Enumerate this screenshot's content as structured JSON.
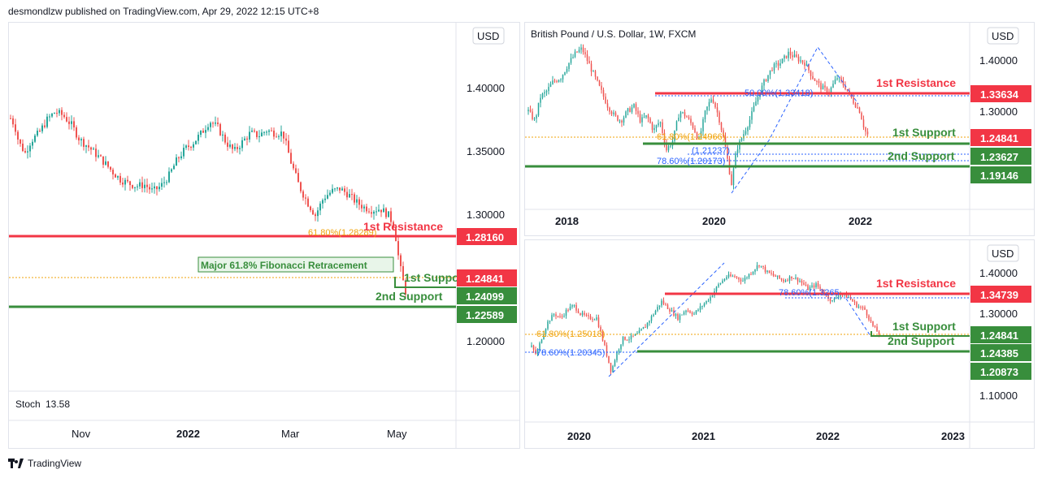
{
  "header": {
    "attribution": "desmondlzw published on TradingView.com, Apr 29, 2022 12:15 UTC+8"
  },
  "footer": {
    "brand": "TradingView"
  },
  "colors": {
    "resistance": "#f23645",
    "support": "#388e3c",
    "fib": "#f0a30a",
    "fib_blue": "#2962ff",
    "candle_up": "#26a69a",
    "candle_down": "#ef5350"
  },
  "chart_data": [
    {
      "id": "daily",
      "type": "candlestick",
      "currency_label": "USD",
      "yticks": [
        "1.40000",
        "1.35000",
        "1.30000",
        "1.20000"
      ],
      "xticks": [
        "Nov",
        "2022",
        "Mar",
        "May"
      ],
      "ylim": [
        1.17,
        1.445
      ],
      "close_path": [
        [
          0,
          1.373
        ],
        [
          5,
          1.368
        ],
        [
          10,
          1.355
        ],
        [
          18,
          1.347
        ],
        [
          25,
          1.356
        ],
        [
          35,
          1.362
        ],
        [
          45,
          1.372
        ],
        [
          55,
          1.378
        ],
        [
          65,
          1.375
        ],
        [
          75,
          1.368
        ],
        [
          85,
          1.357
        ],
        [
          95,
          1.352
        ],
        [
          105,
          1.346
        ],
        [
          115,
          1.34
        ],
        [
          125,
          1.333
        ],
        [
          135,
          1.327
        ],
        [
          145,
          1.324
        ],
        [
          155,
          1.322
        ],
        [
          165,
          1.323
        ],
        [
          175,
          1.318
        ],
        [
          185,
          1.322
        ],
        [
          195,
          1.33
        ],
        [
          205,
          1.342
        ],
        [
          215,
          1.35
        ],
        [
          225,
          1.355
        ],
        [
          235,
          1.362
        ],
        [
          245,
          1.371
        ],
        [
          255,
          1.366
        ],
        [
          265,
          1.355
        ],
        [
          275,
          1.348
        ],
        [
          285,
          1.355
        ],
        [
          295,
          1.362
        ],
        [
          305,
          1.36
        ],
        [
          315,
          1.364
        ],
        [
          325,
          1.362
        ],
        [
          335,
          1.362
        ],
        [
          345,
          1.34
        ],
        [
          355,
          1.322
        ],
        [
          365,
          1.31
        ],
        [
          375,
          1.3
        ],
        [
          385,
          1.313
        ],
        [
          395,
          1.318
        ],
        [
          405,
          1.32
        ],
        [
          415,
          1.316
        ],
        [
          425,
          1.31
        ],
        [
          435,
          1.306
        ],
        [
          445,
          1.304
        ],
        [
          455,
          1.305
        ],
        [
          465,
          1.3
        ],
        [
          472,
          1.292
        ],
        [
          478,
          1.265
        ],
        [
          483,
          1.25
        ],
        [
          487,
          1.24
        ]
      ],
      "levels": [
        {
          "name": "1st Resistance",
          "value": 1.2816,
          "tag": "1.28160"
        },
        {
          "name": "1st Support",
          "value": 1.24841,
          "tag": "1.24841"
        },
        {
          "name": "2nd Support",
          "value": 1.24099,
          "tag": "1.24099"
        },
        {
          "name": "",
          "value": 1.22589,
          "tag": "1.22589"
        }
      ],
      "annotations": {
        "fib_label": "61.80%(1.28289)",
        "callout": "Major 61.8% Fibonacci Retracement",
        "label_resistance": "1st Resistance",
        "label_support1": "1st Support",
        "label_support2": "2nd Support"
      },
      "indicator": {
        "name": "Stoch",
        "value": "13.58"
      }
    },
    {
      "id": "weekly",
      "type": "candlestick",
      "title": "British Pound / U.S. Dollar, 1W, FXCM",
      "currency_label": "USD",
      "yticks": [
        "1.40000",
        "1.30000"
      ],
      "xticks": [
        "2018",
        "2020",
        "2022"
      ],
      "ylim": [
        1.1,
        1.47
      ],
      "close_path": [
        [
          0,
          1.3
        ],
        [
          8,
          1.28
        ],
        [
          15,
          1.33
        ],
        [
          22,
          1.34
        ],
        [
          30,
          1.36
        ],
        [
          40,
          1.37
        ],
        [
          50,
          1.4
        ],
        [
          58,
          1.42
        ],
        [
          66,
          1.43
        ],
        [
          74,
          1.4
        ],
        [
          82,
          1.37
        ],
        [
          90,
          1.34
        ],
        [
          98,
          1.31
        ],
        [
          106,
          1.29
        ],
        [
          114,
          1.28
        ],
        [
          122,
          1.3
        ],
        [
          130,
          1.31
        ],
        [
          138,
          1.28
        ],
        [
          146,
          1.29
        ],
        [
          154,
          1.26
        ],
        [
          162,
          1.28
        ],
        [
          170,
          1.22
        ],
        [
          178,
          1.24
        ],
        [
          186,
          1.3
        ],
        [
          194,
          1.29
        ],
        [
          202,
          1.27
        ],
        [
          210,
          1.24
        ],
        [
          218,
          1.3
        ],
        [
          226,
          1.33
        ],
        [
          234,
          1.29
        ],
        [
          242,
          1.23
        ],
        [
          250,
          1.15
        ],
        [
          256,
          1.22
        ],
        [
          264,
          1.25
        ],
        [
          272,
          1.28
        ],
        [
          280,
          1.32
        ],
        [
          290,
          1.36
        ],
        [
          300,
          1.39
        ],
        [
          310,
          1.4
        ],
        [
          320,
          1.42
        ],
        [
          330,
          1.41
        ],
        [
          340,
          1.4
        ],
        [
          350,
          1.37
        ],
        [
          360,
          1.35
        ],
        [
          370,
          1.34
        ],
        [
          380,
          1.37
        ],
        [
          390,
          1.35
        ],
        [
          400,
          1.32
        ],
        [
          408,
          1.3
        ],
        [
          414,
          1.26
        ],
        [
          418,
          1.25
        ]
      ],
      "levels": [
        {
          "name": "1st Resistance",
          "value": 1.33634,
          "tag": "1.33634"
        },
        {
          "name": "1st Support",
          "value": 1.24841,
          "tag": "1.24841"
        },
        {
          "name": "2nd Support",
          "value": 1.23627,
          "tag": "1.23627"
        },
        {
          "name": "",
          "value": 1.19146,
          "tag": "1.19146"
        }
      ],
      "annotations": {
        "fib_top": "50.00%(1.33418)",
        "fib_mid": "61.80%(1.24966)",
        "fib_mid2": "(1.21237)",
        "fib_low": "78.60%(1.20173)",
        "label_resistance": "1st Resistance",
        "label_support1": "1st Support",
        "label_support2": "2nd Support"
      }
    },
    {
      "id": "daily_long",
      "type": "candlestick",
      "currency_label": "USD",
      "yticks": [
        "1.40000",
        "1.30000",
        "1.10000"
      ],
      "xticks": [
        "2020",
        "2021",
        "2022",
        "2023"
      ],
      "ylim": [
        1.05,
        1.47
      ],
      "close_path": [
        [
          0,
          1.22
        ],
        [
          6,
          1.2
        ],
        [
          12,
          1.24
        ],
        [
          20,
          1.28
        ],
        [
          28,
          1.3
        ],
        [
          36,
          1.29
        ],
        [
          44,
          1.31
        ],
        [
          52,
          1.32
        ],
        [
          60,
          1.3
        ],
        [
          70,
          1.29
        ],
        [
          80,
          1.29
        ],
        [
          90,
          1.22
        ],
        [
          98,
          1.16
        ],
        [
          104,
          1.2
        ],
        [
          112,
          1.24
        ],
        [
          120,
          1.24
        ],
        [
          130,
          1.25
        ],
        [
          140,
          1.27
        ],
        [
          150,
          1.3
        ],
        [
          160,
          1.33
        ],
        [
          170,
          1.31
        ],
        [
          180,
          1.29
        ],
        [
          190,
          1.31
        ],
        [
          200,
          1.3
        ],
        [
          210,
          1.32
        ],
        [
          220,
          1.34
        ],
        [
          230,
          1.37
        ],
        [
          240,
          1.39
        ],
        [
          250,
          1.39
        ],
        [
          260,
          1.38
        ],
        [
          270,
          1.4
        ],
        [
          280,
          1.42
        ],
        [
          290,
          1.4
        ],
        [
          300,
          1.39
        ],
        [
          310,
          1.38
        ],
        [
          320,
          1.39
        ],
        [
          330,
          1.38
        ],
        [
          340,
          1.36
        ],
        [
          350,
          1.37
        ],
        [
          360,
          1.35
        ],
        [
          370,
          1.33
        ],
        [
          380,
          1.35
        ],
        [
          390,
          1.34
        ],
        [
          400,
          1.32
        ],
        [
          410,
          1.31
        ],
        [
          420,
          1.27
        ],
        [
          428,
          1.25
        ]
      ],
      "levels": [
        {
          "name": "1st Resistance",
          "value": 1.34739,
          "tag": "1.34739"
        },
        {
          "name": "1st Support",
          "value": 1.24841,
          "tag": "1.24841"
        },
        {
          "name": "2nd Support",
          "value": 1.24385,
          "tag": "1.24385"
        },
        {
          "name": "",
          "value": 1.20873,
          "tag": "1.20873"
        }
      ],
      "annotations": {
        "fib_top": "78.60%(1.3265",
        "fib_mid": "61.80%(1.25018)",
        "fib_low": "78.60%(1.20345)",
        "label_resistance": "1st Resistance",
        "label_support1": "1st Support",
        "label_support2": "2nd Support"
      }
    }
  ]
}
